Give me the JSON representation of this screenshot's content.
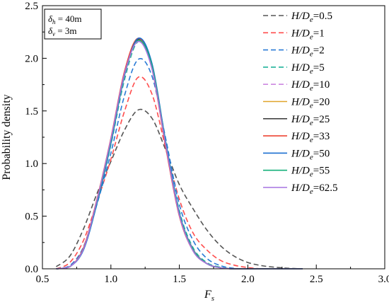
{
  "chart_data": {
    "type": "line",
    "xlabel": "F",
    "xlabel_sub": "s",
    "ylabel": "Probability density",
    "xlim": [
      0.5,
      3.0
    ],
    "ylim": [
      0.0,
      2.5
    ],
    "xticks": [
      "0.5",
      "1.0",
      "1.5",
      "2.0",
      "2.5",
      "3.0"
    ],
    "yticks": [
      "0.0",
      "0.5",
      "1.0",
      "1.5",
      "2.0",
      "2.5"
    ],
    "grid": false,
    "legend_position": "top-right",
    "annotation": {
      "line1_symbol": "δ",
      "line1_sub": "h",
      "line1_value": " = 40m",
      "line2_symbol": "δ",
      "line2_sub": "v",
      "line2_value": " = 3m"
    },
    "x": [
      0.6,
      0.7,
      0.8,
      0.9,
      1.0,
      1.1,
      1.2,
      1.3,
      1.4,
      1.5,
      1.6,
      1.7,
      1.8,
      1.9,
      2.0,
      2.1,
      2.2,
      2.3,
      2.4
    ],
    "series": [
      {
        "name_prefix": "H/D",
        "name_sub": "e",
        "name_value": "=0.5",
        "color": "#555555",
        "dashed": true,
        "values": [
          0.02,
          0.12,
          0.38,
          0.72,
          1.02,
          1.32,
          1.51,
          1.43,
          1.13,
          0.8,
          0.57,
          0.37,
          0.22,
          0.12,
          0.06,
          0.03,
          0.015,
          0.005,
          0.0
        ]
      },
      {
        "name_prefix": "H/D",
        "name_sub": "e",
        "name_value": "=1",
        "color": "#ff4d4d",
        "dashed": true,
        "values": [
          0.0,
          0.06,
          0.27,
          0.64,
          1.04,
          1.5,
          1.82,
          1.66,
          1.15,
          0.66,
          0.34,
          0.18,
          0.08,
          0.035,
          0.012,
          0.0,
          0.0,
          0.0,
          0.0
        ]
      },
      {
        "name_prefix": "H/D",
        "name_sub": "e",
        "name_value": "=2",
        "color": "#2a7bd6",
        "dashed": true,
        "values": [
          0.0,
          0.03,
          0.21,
          0.62,
          1.1,
          1.65,
          1.99,
          1.83,
          1.24,
          0.61,
          0.27,
          0.1,
          0.03,
          0.005,
          0.0,
          0.0,
          0.0,
          0.0,
          0.0
        ]
      },
      {
        "name_prefix": "H/D",
        "name_sub": "e",
        "name_value": "=5",
        "color": "#1fb39a",
        "dashed": true,
        "values": [
          0.0,
          0.02,
          0.19,
          0.63,
          1.18,
          1.8,
          2.16,
          1.92,
          1.21,
          0.55,
          0.2,
          0.06,
          0.015,
          0.0,
          0.0,
          0.0,
          0.0,
          0.0,
          0.0
        ]
      },
      {
        "name_prefix": "H/D",
        "name_sub": "e",
        "name_value": "=10",
        "color": "#cc88e0",
        "dashed": true,
        "values": [
          0.0,
          0.02,
          0.19,
          0.64,
          1.2,
          1.83,
          2.18,
          1.93,
          1.2,
          0.53,
          0.19,
          0.05,
          0.01,
          0.0,
          0.0,
          0.0,
          0.0,
          0.0,
          0.0
        ]
      },
      {
        "name_prefix": "H/D",
        "name_sub": "e",
        "name_value": "=20",
        "color": "#e0a52a",
        "dashed": false,
        "values": [
          0.0,
          0.02,
          0.19,
          0.65,
          1.22,
          1.85,
          2.17,
          1.92,
          1.19,
          0.52,
          0.18,
          0.05,
          0.01,
          0.0,
          0.0,
          0.0,
          0.0,
          0.0,
          0.0
        ]
      },
      {
        "name_prefix": "H/D",
        "name_sub": "e",
        "name_value": "=25",
        "color": "#444444",
        "dashed": false,
        "values": [
          0.0,
          0.02,
          0.19,
          0.65,
          1.22,
          1.86,
          2.18,
          1.92,
          1.18,
          0.51,
          0.18,
          0.05,
          0.01,
          0.0,
          0.0,
          0.0,
          0.0,
          0.0,
          0.0
        ]
      },
      {
        "name_prefix": "H/D",
        "name_sub": "e",
        "name_value": "=33",
        "color": "#ee4433",
        "dashed": false,
        "values": [
          0.0,
          0.02,
          0.2,
          0.67,
          1.24,
          1.88,
          2.19,
          1.9,
          1.16,
          0.5,
          0.17,
          0.05,
          0.01,
          0.0,
          0.0,
          0.0,
          0.0,
          0.0,
          0.0
        ]
      },
      {
        "name_prefix": "H/D",
        "name_sub": "e",
        "name_value": "=50",
        "color": "#1a6fd0",
        "dashed": false,
        "values": [
          0.0,
          0.02,
          0.18,
          0.63,
          1.19,
          1.84,
          2.19,
          1.95,
          1.21,
          0.53,
          0.18,
          0.05,
          0.01,
          0.0,
          0.0,
          0.0,
          0.0,
          0.0,
          0.0
        ]
      },
      {
        "name_prefix": "H/D",
        "name_sub": "e",
        "name_value": "=55",
        "color": "#14b07a",
        "dashed": false,
        "values": [
          0.0,
          0.02,
          0.19,
          0.65,
          1.21,
          1.85,
          2.17,
          1.93,
          1.19,
          0.52,
          0.18,
          0.05,
          0.01,
          0.0,
          0.0,
          0.0,
          0.0,
          0.0,
          0.0
        ]
      },
      {
        "name_prefix": "H/D",
        "name_sub": "e",
        "name_value": "=62.5",
        "color": "#a673e0",
        "dashed": false,
        "values": [
          0.0,
          0.02,
          0.19,
          0.66,
          1.23,
          1.86,
          2.16,
          1.9,
          1.18,
          0.51,
          0.17,
          0.05,
          0.01,
          0.0,
          0.0,
          0.0,
          0.0,
          0.0,
          0.0
        ]
      }
    ]
  }
}
